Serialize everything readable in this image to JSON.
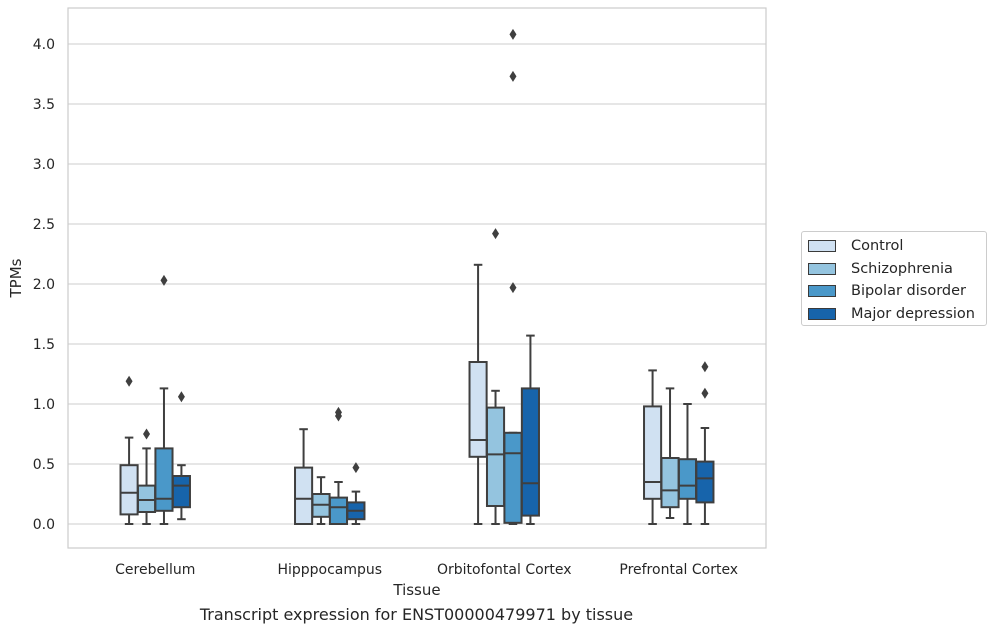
{
  "caption": "Transcript expression for ENST00000479971 by tissue",
  "chart_data": {
    "type": "box",
    "xlabel": "Tissue",
    "ylabel": "TPMs",
    "ylim": [
      -0.2,
      4.3
    ],
    "yticks": [
      0.0,
      0.5,
      1.0,
      1.5,
      2.0,
      2.5,
      3.0,
      3.5,
      4.0
    ],
    "ytick_labels": [
      "0.0",
      "0.5",
      "1.0",
      "1.5",
      "2.0",
      "2.5",
      "3.0",
      "3.5",
      "4.0"
    ],
    "grid": "horizontal",
    "legend_position": "right",
    "categories": [
      "Cerebellum",
      "Hipppocampus",
      "Orbitofontal Cortex",
      "Prefrontal Cortex"
    ],
    "series": [
      {
        "name": "Control",
        "color": "#d0e1f2",
        "boxes": [
          {
            "whislo": 0.0,
            "q1": 0.08,
            "med": 0.26,
            "q3": 0.49,
            "whishi": 0.72,
            "fliers": [
              1.19
            ]
          },
          {
            "whislo": 0.0,
            "q1": 0.0,
            "med": 0.21,
            "q3": 0.47,
            "whishi": 0.79,
            "fliers": []
          },
          {
            "whislo": 0.0,
            "q1": 0.56,
            "med": 0.7,
            "q3": 1.35,
            "whishi": 2.16,
            "fliers": []
          },
          {
            "whislo": 0.0,
            "q1": 0.21,
            "med": 0.35,
            "q3": 0.98,
            "whishi": 1.28,
            "fliers": []
          }
        ]
      },
      {
        "name": "Schizophrenia",
        "color": "#94c4df",
        "boxes": [
          {
            "whislo": 0.0,
            "q1": 0.1,
            "med": 0.2,
            "q3": 0.32,
            "whishi": 0.63,
            "fliers": [
              0.75
            ]
          },
          {
            "whislo": 0.0,
            "q1": 0.06,
            "med": 0.16,
            "q3": 0.25,
            "whishi": 0.39,
            "fliers": []
          },
          {
            "whislo": 0.0,
            "q1": 0.15,
            "med": 0.58,
            "q3": 0.97,
            "whishi": 1.11,
            "fliers": [
              2.42
            ]
          },
          {
            "whislo": 0.05,
            "q1": 0.14,
            "med": 0.28,
            "q3": 0.55,
            "whishi": 1.13,
            "fliers": []
          }
        ]
      },
      {
        "name": "Bipolar disorder",
        "color": "#4a98c9",
        "boxes": [
          {
            "whislo": 0.0,
            "q1": 0.11,
            "med": 0.21,
            "q3": 0.63,
            "whishi": 1.13,
            "fliers": [
              2.03
            ]
          },
          {
            "whislo": 0.0,
            "q1": 0.0,
            "med": 0.14,
            "q3": 0.22,
            "whishi": 0.35,
            "fliers": [
              0.9,
              0.93
            ]
          },
          {
            "whislo": 0.0,
            "q1": 0.01,
            "med": 0.59,
            "q3": 0.76,
            "whishi": 0.76,
            "fliers": [
              1.97,
              3.73,
              4.08
            ]
          },
          {
            "whislo": 0.0,
            "q1": 0.21,
            "med": 0.32,
            "q3": 0.54,
            "whishi": 1.0,
            "fliers": []
          }
        ]
      },
      {
        "name": "Major depression",
        "color": "#1764ab",
        "boxes": [
          {
            "whislo": 0.04,
            "q1": 0.14,
            "med": 0.32,
            "q3": 0.4,
            "whishi": 0.49,
            "fliers": [
              1.06
            ]
          },
          {
            "whislo": 0.0,
            "q1": 0.04,
            "med": 0.11,
            "q3": 0.18,
            "whishi": 0.27,
            "fliers": [
              0.47
            ]
          },
          {
            "whislo": 0.0,
            "q1": 0.07,
            "med": 0.34,
            "q3": 1.13,
            "whishi": 1.57,
            "fliers": []
          },
          {
            "whislo": 0.0,
            "q1": 0.18,
            "med": 0.38,
            "q3": 0.52,
            "whishi": 0.8,
            "fliers": [
              1.09,
              1.31
            ]
          }
        ]
      }
    ]
  }
}
